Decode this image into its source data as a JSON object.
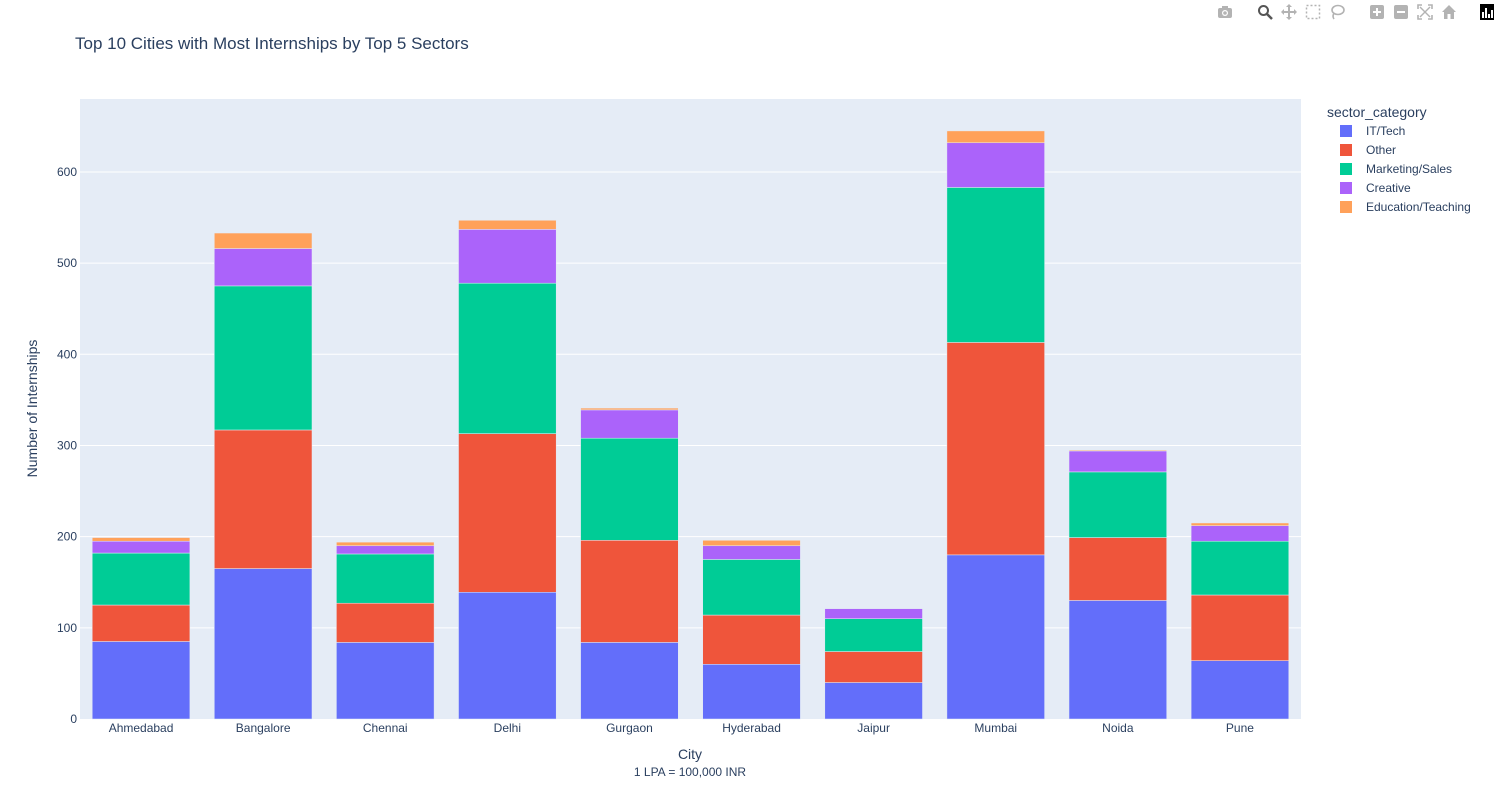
{
  "chart_data": {
    "type": "bar",
    "barmode": "stack",
    "title": "Top 10 Cities with Most Internships by Top 5 Sectors",
    "xlabel": "City",
    "x_annotation": "1 LPA = 100,000 INR",
    "ylabel": "Number of Internships",
    "ylim": [
      0,
      680
    ],
    "yticks": [
      0,
      100,
      200,
      300,
      400,
      500,
      600
    ],
    "grid": true,
    "legend_title": "sector_category",
    "legend_position": "top-right, outside plot",
    "categories": [
      "Ahmedabad",
      "Bangalore",
      "Chennai",
      "Delhi",
      "Gurgaon",
      "Hyderabad",
      "Jaipur",
      "Mumbai",
      "Noida",
      "Pune"
    ],
    "series": [
      {
        "name": "IT/Tech",
        "color": "#636efa",
        "values": [
          85,
          165,
          84,
          139,
          84,
          60,
          40,
          180,
          130,
          64
        ]
      },
      {
        "name": "Other",
        "color": "#ef553b",
        "values": [
          40,
          152,
          43,
          174,
          112,
          54,
          34,
          233,
          69,
          72
        ]
      },
      {
        "name": "Marketing/Sales",
        "color": "#00cc96",
        "values": [
          57,
          158,
          54,
          165,
          112,
          61,
          36,
          170,
          72,
          59
        ]
      },
      {
        "name": "Creative",
        "color": "#ab63fa",
        "values": [
          13,
          41,
          9,
          59,
          31,
          15,
          11,
          49,
          23,
          17
        ]
      },
      {
        "name": "Education/Teaching",
        "color": "#ffa15a",
        "values": [
          4,
          17,
          4,
          10,
          2,
          6,
          0,
          13,
          1,
          3
        ]
      }
    ]
  },
  "modebar": {
    "icons": [
      "camera-icon",
      "zoom-icon",
      "pan-icon",
      "box-select-icon",
      "lasso-icon",
      "zoom-in-icon",
      "zoom-out-icon",
      "autoscale-icon",
      "reset-axes-icon",
      "plotly-logo-icon"
    ]
  }
}
